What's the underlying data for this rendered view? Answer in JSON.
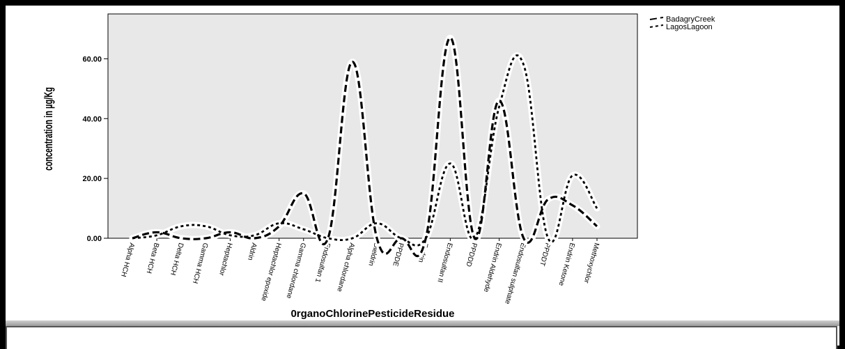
{
  "chart_data": {
    "type": "line",
    "title": "",
    "xlabel": "0rganoChlorinePesticideResidue",
    "ylabel": "concentration in µg/Kg",
    "ylim": [
      0,
      75
    ],
    "yticks": [
      "0.00",
      "20.00",
      "40.00",
      "60.00"
    ],
    "ytick_values": [
      0,
      20,
      40,
      60
    ],
    "grid": false,
    "legend_position": "top-right",
    "categories": [
      "Alpha HCH",
      "Beta HCH",
      "Delta HCH",
      "Gamma HCH",
      "Heptachlor",
      "Aldrin",
      "Heptachlor epoxide",
      "Gamma chlordane",
      "Endosulfan 1",
      "Alpha chlordane",
      "Dieldrin",
      "PPDDE",
      "Endrin",
      "Endosulfan II",
      "PPDDD",
      "Endrin Aldehyde",
      "Endosulfan sulphate",
      "PPDDT",
      "Endrin Ketone",
      "Methoxychlor"
    ],
    "series": [
      {
        "name": "BadagryCreek",
        "style": "long-dash",
        "color": "#000000",
        "values": [
          0,
          2,
          0,
          0,
          2,
          0,
          4,
          15,
          0,
          59,
          0,
          0,
          0,
          67,
          0,
          46,
          0,
          13,
          11,
          4
        ]
      },
      {
        "name": "LagosLagoon",
        "style": "short-dash",
        "color": "#000000",
        "values": [
          0,
          1,
          4,
          4,
          1,
          1,
          5,
          3,
          0,
          0,
          5,
          0,
          0,
          25,
          0,
          44,
          58,
          0,
          21,
          10
        ]
      }
    ]
  },
  "colors": {
    "plot_background": "#e8e8e8",
    "line_halo": "#ffffff",
    "line": "#000000"
  }
}
